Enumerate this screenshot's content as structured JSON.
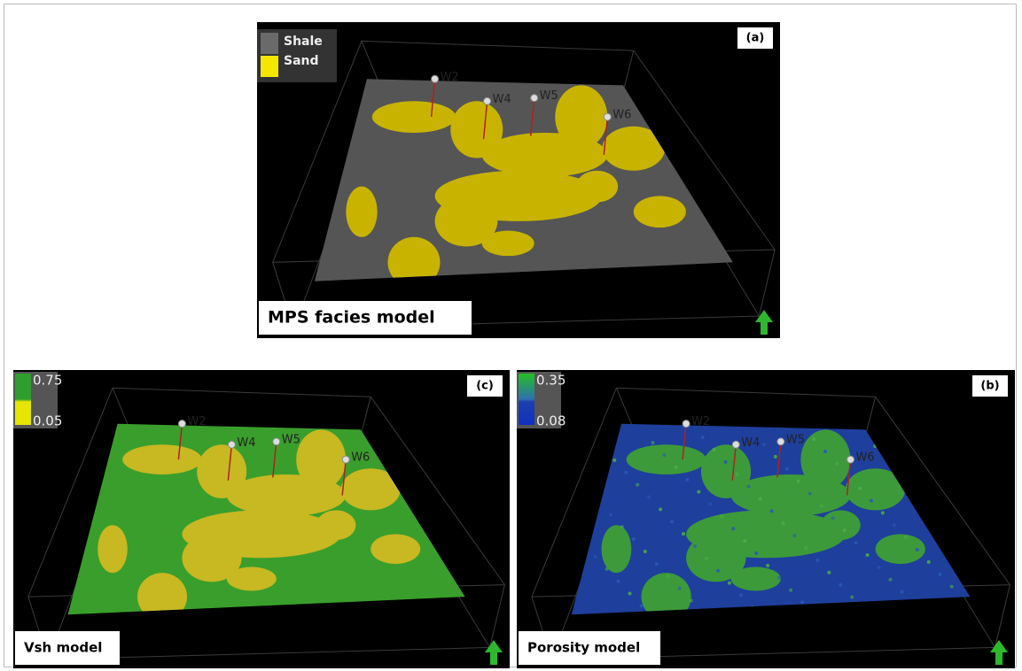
{
  "panels": [
    {
      "tag": "(a)",
      "caption": "MPS facies model",
      "legend": [
        {
          "label": "Shale"
        },
        {
          "label": "Sand"
        }
      ],
      "wells": [
        "W2",
        "W4",
        "W5",
        "W6"
      ]
    },
    {
      "tag": "(c)",
      "caption": "Vsh model",
      "scale": {
        "max": 0.75,
        "min": 0.05
      },
      "wells": [
        "W2",
        "W4",
        "W5",
        "W6"
      ]
    },
    {
      "tag": "(b)",
      "caption": "Porosity model",
      "scale": {
        "max": 0.35,
        "min": 0.08
      },
      "wells": [
        "W2",
        "W4",
        "W5",
        "W6"
      ]
    }
  ]
}
